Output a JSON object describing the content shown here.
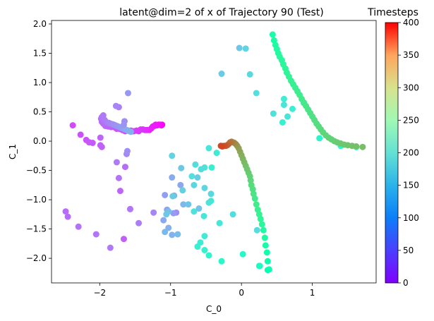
{
  "chart_data": {
    "type": "scatter",
    "title": "latent@dim=2 of x of Trajectory 90 (Test)",
    "xlabel": "C_0",
    "ylabel": "C_1",
    "xlim": [
      -2.68,
      1.9
    ],
    "ylim": [
      -2.42,
      2.06
    ],
    "xticks": [
      -2,
      -1,
      0,
      1
    ],
    "yticks": [
      -2.0,
      -1.5,
      -1.0,
      -0.5,
      0.0,
      0.5,
      1.0,
      1.5,
      2.0
    ],
    "xtick_labels": [
      "−2",
      "−1",
      "0",
      "1"
    ],
    "ytick_labels": [
      "−2.0",
      "−1.5",
      "−1.0",
      "−0.5",
      "0.0",
      "0.5",
      "1.0",
      "1.5",
      "2.0"
    ],
    "grid": false,
    "colorbar": {
      "label": "Timesteps",
      "colormap": "rainbow",
      "range": [
        0,
        400
      ],
      "ticks": [
        0,
        50,
        100,
        150,
        200,
        250,
        300,
        350,
        400
      ],
      "tick_labels": [
        "0",
        "50",
        "100",
        "150",
        "200",
        "250",
        "300",
        "350",
        "400"
      ]
    },
    "x": [
      -1.12,
      -1.13,
      -1.15,
      -1.17,
      -1.19,
      -1.21,
      -1.23,
      -1.25,
      -1.27,
      -1.3,
      -1.33,
      -1.36,
      -1.39,
      -1.42,
      -1.45,
      -1.48,
      -1.52,
      -1.56,
      -1.6,
      -1.64,
      -1.68,
      -1.72,
      -1.76,
      -1.8,
      -1.84,
      -1.88,
      -1.92,
      -1.95,
      -1.97,
      -1.98,
      -1.97,
      -1.95,
      -1.93,
      -1.9,
      -1.87,
      -1.85,
      -1.82,
      -1.8,
      -1.78,
      -1.76,
      -1.74,
      -1.72,
      -1.7,
      -1.68,
      -1.66,
      -1.64,
      -1.62,
      -1.6,
      -1.58,
      -1.56,
      -2.38,
      -2.27,
      -2.19,
      -2.15,
      -2.1,
      -1.99,
      -1.97,
      -1.99,
      -2.48,
      -2.45,
      -2.3,
      -2.05,
      -1.85,
      -1.66,
      -1.71,
      -1.64,
      -1.73,
      -1.76,
      -1.57,
      -1.62,
      -1.61,
      -1.73,
      -1.77,
      -1.65,
      -1.66,
      -1.6,
      -1.57,
      -1.45,
      -1.24,
      -0.92,
      -1.08,
      -0.86,
      -0.98,
      -0.95,
      -0.82,
      -0.9,
      -0.6,
      -0.85,
      -0.97,
      -0.83,
      -0.52,
      -0.43,
      -0.7,
      -0.52,
      -0.46,
      -0.96,
      -1.05,
      -1.1,
      -1.03,
      -0.98,
      -1.08,
      -1.03,
      -0.75,
      -1.06,
      -0.62,
      -0.98,
      -0.67,
      -0.65,
      -0.57,
      -0.67,
      -0.53,
      -0.43,
      -0.35,
      -0.42,
      -0.03,
      -0.28,
      -0.26,
      0.06,
      0.12,
      0.21,
      0.45,
      0.6,
      0.65,
      0.6,
      0.72,
      0.58,
      0.88,
      1.1,
      1.4,
      1.62,
      0.22,
      -0.12,
      -0.46,
      -0.31,
      -0.52,
      -0.58,
      -0.62,
      -0.52,
      -0.46,
      -0.28,
      0.02,
      0.26,
      0.25,
      0.37,
      0.39,
      0.37,
      0.36,
      0.34,
      0.33,
      0.31,
      0.29,
      0.27,
      0.25,
      0.23,
      0.21,
      0.19,
      0.17,
      0.16,
      0.14,
      0.13,
      0.12,
      0.1,
      0.08,
      0.06,
      0.04,
      0.02,
      0.0,
      -0.02,
      -0.04,
      -0.06,
      -0.08,
      -0.1,
      -0.12,
      -0.14,
      -0.16,
      -0.18,
      -0.2,
      -0.22,
      -0.24,
      -0.27,
      -0.29,
      0.44,
      0.46,
      0.48,
      0.5,
      0.52,
      0.54,
      0.57,
      0.59,
      0.62,
      0.64,
      0.67,
      0.7,
      0.73,
      0.76,
      0.79,
      0.82,
      0.85,
      0.88,
      0.91,
      0.94,
      0.97,
      1.0,
      1.03,
      1.06,
      1.09,
      1.12,
      1.15,
      1.19,
      1.23,
      1.27,
      1.31,
      1.35,
      1.4,
      1.45,
      1.5,
      1.56,
      1.62,
      1.71
    ],
    "y": [
      0.28,
      0.27,
      0.28,
      0.28,
      0.27,
      0.28,
      0.26,
      0.25,
      0.22,
      0.19,
      0.19,
      0.19,
      0.2,
      0.2,
      0.17,
      0.18,
      0.17,
      0.18,
      0.18,
      0.17,
      0.19,
      0.21,
      0.21,
      0.24,
      0.24,
      0.25,
      0.26,
      0.3,
      0.33,
      0.38,
      0.41,
      0.44,
      0.36,
      0.32,
      0.31,
      0.3,
      0.29,
      0.28,
      0.27,
      0.26,
      0.25,
      0.24,
      0.23,
      0.22,
      0.21,
      0.2,
      0.19,
      0.18,
      0.17,
      0.16,
      0.27,
      0.11,
      0.02,
      -0.02,
      -0.03,
      -0.07,
      -0.1,
      0.06,
      -1.2,
      -1.29,
      -1.46,
      -1.59,
      -1.82,
      -1.67,
      -0.85,
      -0.44,
      -0.63,
      -0.36,
      -1.16,
      -0.22,
      -0.17,
      0.58,
      0.6,
      0.34,
      0.28,
      0.82,
      -1.16,
      -1.4,
      -1.22,
      -1.22,
      -0.92,
      -0.75,
      -0.62,
      -0.93,
      -1.08,
      -1.59,
      -1.15,
      -0.46,
      -0.94,
      -0.84,
      -0.8,
      -0.9,
      -0.6,
      -0.45,
      -0.12,
      -1.23,
      -1.17,
      -1.35,
      -1.48,
      -1.6,
      -1.55,
      -1.2,
      -1.08,
      -1.25,
      -0.62,
      -0.25,
      -0.75,
      -0.4,
      -0.48,
      -1.2,
      -1.28,
      -1.02,
      -0.2,
      -0.45,
      1.59,
      1.15,
      -0.08,
      1.58,
      1.14,
      0.82,
      0.47,
      0.62,
      0.42,
      0.72,
      0.55,
      0.32,
      0.65,
      0.05,
      -0.08,
      -0.1,
      -1.52,
      -1.25,
      -1.05,
      -1.4,
      -1.62,
      -1.73,
      -1.8,
      -1.86,
      -1.95,
      -2.05,
      -1.93,
      -2.13,
      -2.13,
      -2.2,
      -2.19,
      -2.05,
      -1.9,
      -1.78,
      -1.65,
      -1.52,
      -1.42,
      -1.33,
      -1.25,
      -1.17,
      -1.08,
      -0.98,
      -0.9,
      -0.82,
      -0.75,
      -0.67,
      -0.6,
      -0.54,
      -0.48,
      -0.42,
      -0.36,
      -0.3,
      -0.24,
      -0.18,
      -0.12,
      -0.08,
      -0.05,
      -0.03,
      -0.02,
      -0.01,
      -0.02,
      -0.05,
      -0.07,
      -0.08,
      -0.08,
      -0.09,
      -0.08,
      1.82,
      1.72,
      1.64,
      1.57,
      1.5,
      1.44,
      1.38,
      1.31,
      1.24,
      1.17,
      1.1,
      1.03,
      0.97,
      0.91,
      0.85,
      0.79,
      0.72,
      0.66,
      0.6,
      0.54,
      0.48,
      0.42,
      0.36,
      0.3,
      0.25,
      0.2,
      0.15,
      0.1,
      0.06,
      0.03,
      0.0,
      -0.02,
      -0.04,
      -0.06,
      -0.07,
      -0.08,
      -0.09,
      -0.1
    ],
    "t": [
      0,
      2,
      4,
      6,
      8,
      10,
      12,
      14,
      16,
      18,
      20,
      22,
      24,
      26,
      28,
      30,
      32,
      34,
      36,
      38,
      40,
      42,
      44,
      46,
      48,
      50,
      52,
      54,
      56,
      58,
      60,
      62,
      64,
      66,
      68,
      70,
      72,
      74,
      76,
      78,
      80,
      82,
      84,
      86,
      88,
      90,
      92,
      94,
      96,
      98,
      38,
      40,
      42,
      44,
      46,
      48,
      50,
      52,
      55,
      57,
      59,
      61,
      63,
      48,
      52,
      56,
      60,
      64,
      68,
      72,
      76,
      66,
      70,
      74,
      78,
      82,
      62,
      66,
      70,
      74,
      86,
      90,
      94,
      98,
      102,
      106,
      110,
      114,
      118,
      122,
      126,
      130,
      134,
      138,
      142,
      84,
      88,
      92,
      96,
      100,
      104,
      108,
      112,
      116,
      120,
      124,
      128,
      132,
      136,
      140,
      144,
      148,
      152,
      156,
      114,
      118,
      122,
      126,
      130,
      134,
      138,
      142,
      146,
      150,
      154,
      158,
      162,
      166,
      170,
      174,
      132,
      136,
      140,
      144,
      148,
      152,
      156,
      160,
      164,
      168,
      172,
      176,
      180,
      200,
      205,
      209,
      214,
      218,
      223,
      227,
      232,
      236,
      241,
      245,
      250,
      254,
      259,
      263,
      268,
      272,
      277,
      281,
      286,
      290,
      295,
      299,
      304,
      308,
      313,
      317,
      322,
      326,
      331,
      335,
      340,
      344,
      349,
      353,
      358,
      362,
      365,
      220,
      222,
      224,
      226,
      228,
      230,
      232,
      234,
      236,
      238,
      240,
      242,
      244,
      246,
      248,
      250,
      252,
      254,
      256,
      258,
      260,
      262,
      264,
      266,
      268,
      270,
      272,
      274,
      276,
      278,
      280,
      282,
      284,
      286,
      288,
      290,
      292,
      294
    ]
  }
}
